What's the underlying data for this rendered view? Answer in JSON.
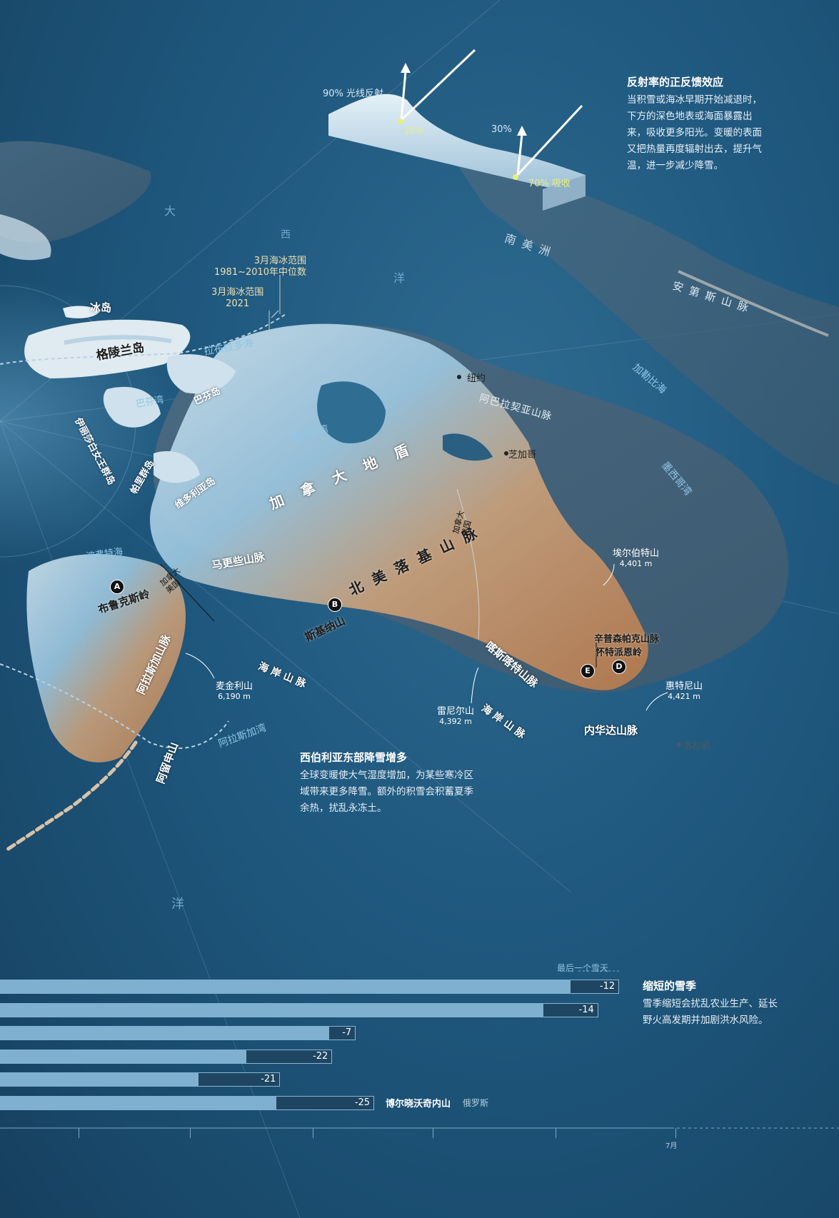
{
  "sea_ice_legend": {
    "median_label": "3月海冰范围\n1981~2010年中位数",
    "line2021_label": "3月海冰范围\n2021"
  },
  "albedo_inset": {
    "reflect_label": "90% 光线反射",
    "absorb10_label": "10%",
    "reflect30_label": "30%",
    "absorb70_label": "70% 吸收"
  },
  "albedo_note": {
    "title": "反射率的正反馈效应",
    "body": "当积雪或海冰早期开始减退时，下方的深色地表或海面暴露出来，吸收更多阳光。变暖的表面又把热量再度辐射出去，提升气温，进一步减少降雪。"
  },
  "siberia_note": {
    "title": "西伯利亚东部降雪增多",
    "body": "全球变暖使大气湿度增加，为某些寒冷区域带来更多降雪。额外的积雪会积蓄夏季余热，扰乱永冻土。"
  },
  "season_note": {
    "title": "缩短的雪季",
    "body": "雪季缩短会扰乱农业生产、延长野火高发期并加剧洪水风险。"
  },
  "places": {
    "atlantic_chars": [
      "大",
      "西",
      "洋"
    ],
    "south_america": "南 美 洲",
    "andes": "安 第 斯 山 脉",
    "caribbean": "加勒比海",
    "gulf_mexico": "墨西哥湾",
    "iceland": "冰岛",
    "greenland": "格陵兰岛",
    "labrador": "拉布拉多海",
    "baffin_bay": "巴芬湾",
    "baffin_island": "巴芬岛",
    "hudson_bay": "哈德孙湾",
    "qe_islands": "伊丽莎白女王群岛",
    "parry": "帕里群岛",
    "victoria": "维多利亚岛",
    "beaufort": "波弗特海",
    "canada_shield": "加 拿 大 地 盾",
    "north_america": "北   美   落   基   山   脉",
    "new_york": "纽约",
    "appalachian": "阿巴拉契亚山脉",
    "chicago": "芝加哥",
    "mackenzie": "马更些山脉",
    "brooks": "布鲁克斯岭",
    "st_elias": "斯基纳山",
    "alaska_range": "阿拉斯加山脉",
    "coast_mts_1": "海   岸   山   脉",
    "cascade": "喀斯喀特山脉",
    "coast_mts_2": "海   岸   山   脉",
    "sierra": "内华达山脉",
    "gulf_alaska": "阿拉斯加湾",
    "aleutian": "阿留申山",
    "pacific": "洋",
    "la": "洛杉矶",
    "wasatch": "辛普森帕克山脉",
    "uinta": "怀特派恩岭",
    "canada_us_1": "加拿大\n美国",
    "canada_us_2": "加拿大\n美国"
  },
  "peaks": [
    {
      "name": "埃尔伯特山",
      "elev": "4,401 m"
    },
    {
      "name": "惠特尼山",
      "elev": "4,421 m"
    },
    {
      "name": "雷尼尔山",
      "elev": "4,392 m"
    },
    {
      "name": "麦金利山",
      "elev": "6,190 m"
    }
  ],
  "markers": [
    "A",
    "B",
    "D",
    "E"
  ],
  "snow_chart": {
    "header_label": "最后一个雪天",
    "rows": [
      {
        "value": "-12",
        "fill": 0.68,
        "total": 0.738
      },
      {
        "value": "-14",
        "fill": 0.648,
        "total": 0.713
      },
      {
        "value": "-7",
        "fill": 0.392,
        "total": 0.424
      },
      {
        "value": "-22",
        "fill": 0.294,
        "total": 0.396
      },
      {
        "value": "-21",
        "fill": 0.237,
        "total": 0.334
      },
      {
        "value": "-25",
        "fill": 0.329,
        "total": 0.446
      }
    ],
    "last_row_name": "博尔晓沃奇内山",
    "last_row_country": "俄罗斯",
    "axis_label": "7月"
  }
}
